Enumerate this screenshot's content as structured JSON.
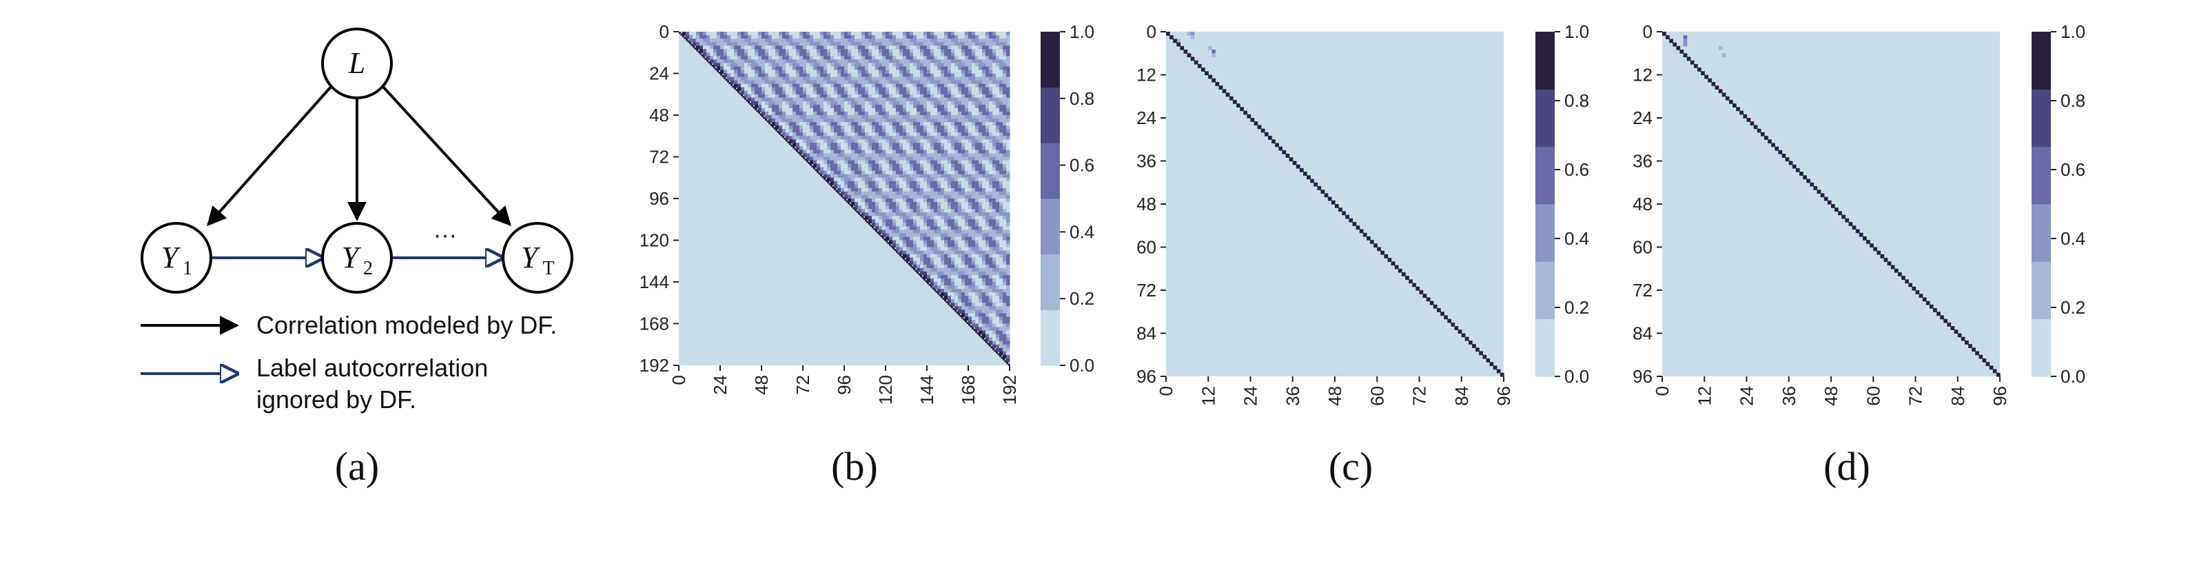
{
  "diagram": {
    "nodes": [
      {
        "id": "L",
        "label": "L",
        "sub": ""
      },
      {
        "id": "Y1",
        "label": "Y",
        "sub": "1"
      },
      {
        "id": "Y2",
        "label": "Y",
        "sub": "2"
      },
      {
        "id": "YT",
        "label": "Y",
        "sub": "T"
      }
    ],
    "ellipsis": "···",
    "legend": {
      "modeled": "Correlation modeled by DF.",
      "ignored_line1": "Label autocorrelation",
      "ignored_line2": "ignored by DF."
    },
    "colors": {
      "modeled": "#000000",
      "ignored": "#1f3b6b"
    }
  },
  "captions": [
    "(a)",
    "(b)",
    "(c)",
    "(d)"
  ],
  "colorbar": {
    "ticks": [
      "0.0",
      "0.2",
      "0.4",
      "0.6",
      "0.8",
      "1.0"
    ],
    "colors": [
      "#c8dde8",
      "#a4b7d6",
      "#8a95c8",
      "#6a6aa8",
      "#4a4680",
      "#2a2040"
    ]
  },
  "chart_data": [
    {
      "type": "heatmap",
      "panel": "(b)",
      "size": 192,
      "ticks": [
        0,
        24,
        48,
        72,
        96,
        120,
        144,
        168,
        192
      ],
      "xlim": [
        0,
        192
      ],
      "ylim": [
        192,
        0
      ],
      "vmin": 0.0,
      "vmax": 1.0,
      "lower_triangle_value": 0.0,
      "diagonal_value": 1.0,
      "upper_triangle_pattern": "periodic mid-to-high correlation, period about 12"
    },
    {
      "type": "heatmap",
      "panel": "(c)",
      "size": 96,
      "ticks": [
        0,
        12,
        24,
        36,
        48,
        60,
        72,
        84,
        96
      ],
      "xlim": [
        0,
        96
      ],
      "ylim": [
        96,
        0
      ],
      "vmin": 0.0,
      "vmax": 1.0,
      "off_diagonal_value": 0.0,
      "diagonal_value": 1.0
    },
    {
      "type": "heatmap",
      "panel": "(d)",
      "size": 96,
      "ticks": [
        0,
        12,
        24,
        36,
        48,
        60,
        72,
        84,
        96
      ],
      "xlim": [
        0,
        96
      ],
      "ylim": [
        96,
        0
      ],
      "vmin": 0.0,
      "vmax": 1.0,
      "off_diagonal_value": 0.0,
      "diagonal_value": 1.0
    }
  ]
}
